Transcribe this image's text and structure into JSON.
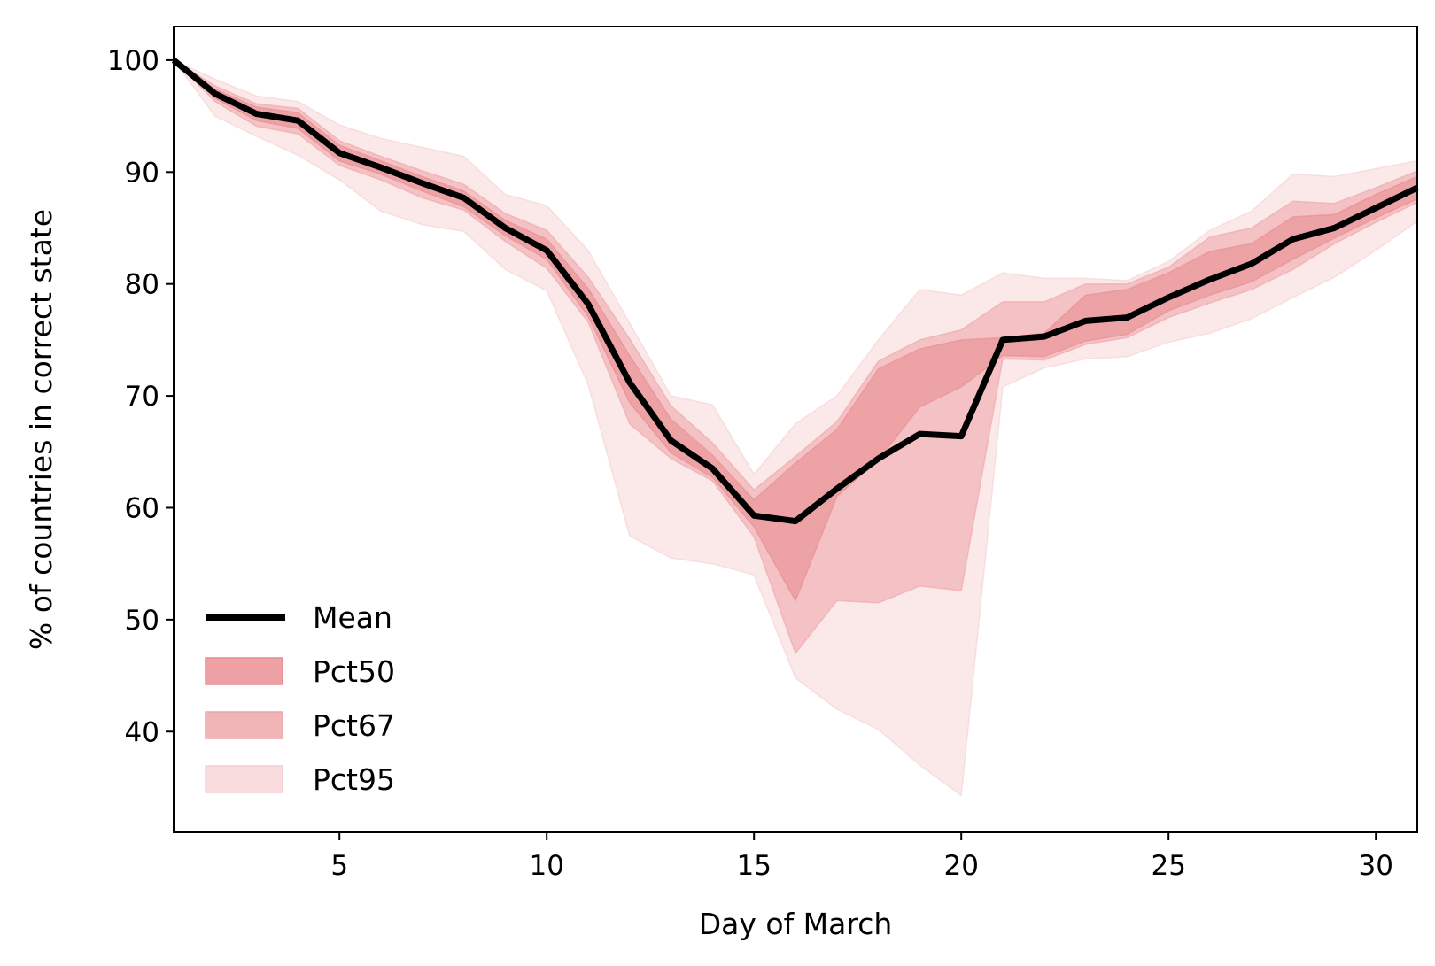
{
  "chart_data": {
    "type": "line",
    "xlabel": "Day of March",
    "ylabel": "% of countries in correct state",
    "xlim": [
      1,
      31
    ],
    "ylim": [
      31,
      103
    ],
    "xticks": [
      5,
      10,
      15,
      20,
      25,
      30
    ],
    "yticks": [
      40,
      50,
      60,
      70,
      80,
      90,
      100
    ],
    "grid": false,
    "legend_position": "lower-left",
    "x": [
      1,
      2,
      3,
      4,
      5,
      6,
      7,
      8,
      9,
      10,
      11,
      12,
      13,
      14,
      15,
      16,
      17,
      18,
      19,
      20,
      21,
      22,
      23,
      24,
      25,
      26,
      27,
      28,
      29,
      30,
      31
    ],
    "series": [
      {
        "name": "Mean",
        "kind": "line",
        "color": "#000000",
        "values": [
          100.0,
          97.0,
          95.2,
          94.6,
          91.7,
          90.4,
          89.0,
          87.7,
          85.0,
          83.0,
          78.2,
          71.2,
          66.0,
          63.5,
          59.3,
          58.8,
          61.7,
          64.4,
          66.6,
          66.4,
          75.0,
          75.3,
          76.7,
          77.0,
          78.8,
          80.4,
          81.8,
          84.0,
          85.0,
          86.8,
          88.6
        ]
      },
      {
        "name": "Pct50",
        "kind": "band",
        "color": "#e88a8d",
        "opacity": 0.55,
        "upper": [
          100.0,
          97.4,
          95.8,
          95.3,
          92.4,
          91.0,
          89.6,
          88.3,
          85.7,
          84.0,
          79.6,
          73.6,
          67.9,
          64.7,
          60.7,
          64.0,
          67.0,
          72.4,
          74.2,
          75.0,
          75.2,
          75.6,
          79.0,
          79.5,
          81.0,
          82.9,
          83.6,
          86.0,
          86.2,
          88.0,
          89.6
        ],
        "lower": [
          100.0,
          96.6,
          94.6,
          93.9,
          91.0,
          89.8,
          88.3,
          86.9,
          84.3,
          82.2,
          77.1,
          69.4,
          64.9,
          62.7,
          58.3,
          51.7,
          61.0,
          64.3,
          69.0,
          70.8,
          73.6,
          73.5,
          74.9,
          75.5,
          77.6,
          79.0,
          80.2,
          82.2,
          84.1,
          85.9,
          87.6
        ]
      },
      {
        "name": "Pct67",
        "kind": "band",
        "color": "#eea3a5",
        "opacity": 0.55,
        "upper": [
          100.0,
          97.7,
          96.1,
          95.7,
          92.8,
          91.4,
          90.1,
          88.9,
          86.3,
          84.8,
          80.6,
          75.1,
          69.1,
          65.8,
          61.6,
          64.6,
          67.7,
          73.1,
          75.0,
          75.9,
          78.4,
          78.4,
          80.0,
          80.0,
          81.5,
          84.2,
          85.0,
          87.4,
          87.2,
          88.6,
          90.1
        ],
        "lower": [
          100.0,
          96.3,
          94.1,
          93.4,
          90.6,
          89.3,
          87.7,
          86.6,
          83.8,
          81.4,
          76.6,
          67.5,
          64.4,
          62.4,
          57.4,
          47.0,
          51.7,
          51.5,
          53.0,
          52.6,
          73.3,
          73.2,
          74.6,
          75.2,
          77.0,
          78.3,
          79.5,
          81.3,
          83.6,
          85.5,
          87.3
        ]
      },
      {
        "name": "Pct95",
        "kind": "band",
        "color": "#f6cfd0",
        "opacity": 0.45,
        "upper": [
          100.0,
          98.3,
          96.8,
          96.3,
          94.2,
          93.0,
          92.2,
          91.4,
          88.0,
          87.0,
          83.0,
          76.5,
          70.0,
          69.2,
          63.0,
          67.5,
          70.0,
          75.0,
          79.5,
          79.0,
          81.0,
          80.5,
          80.5,
          80.3,
          82.0,
          84.8,
          86.5,
          89.8,
          89.6,
          90.3,
          91.0
        ],
        "lower": [
          100.0,
          95.0,
          93.2,
          91.5,
          89.3,
          86.5,
          85.3,
          84.7,
          81.3,
          79.4,
          71.0,
          57.5,
          55.5,
          55.0,
          54.0,
          44.8,
          42.0,
          40.2,
          37.0,
          34.3,
          70.8,
          72.5,
          73.3,
          73.5,
          74.8,
          75.6,
          76.9,
          78.8,
          80.6,
          83.0,
          85.6
        ]
      }
    ]
  }
}
